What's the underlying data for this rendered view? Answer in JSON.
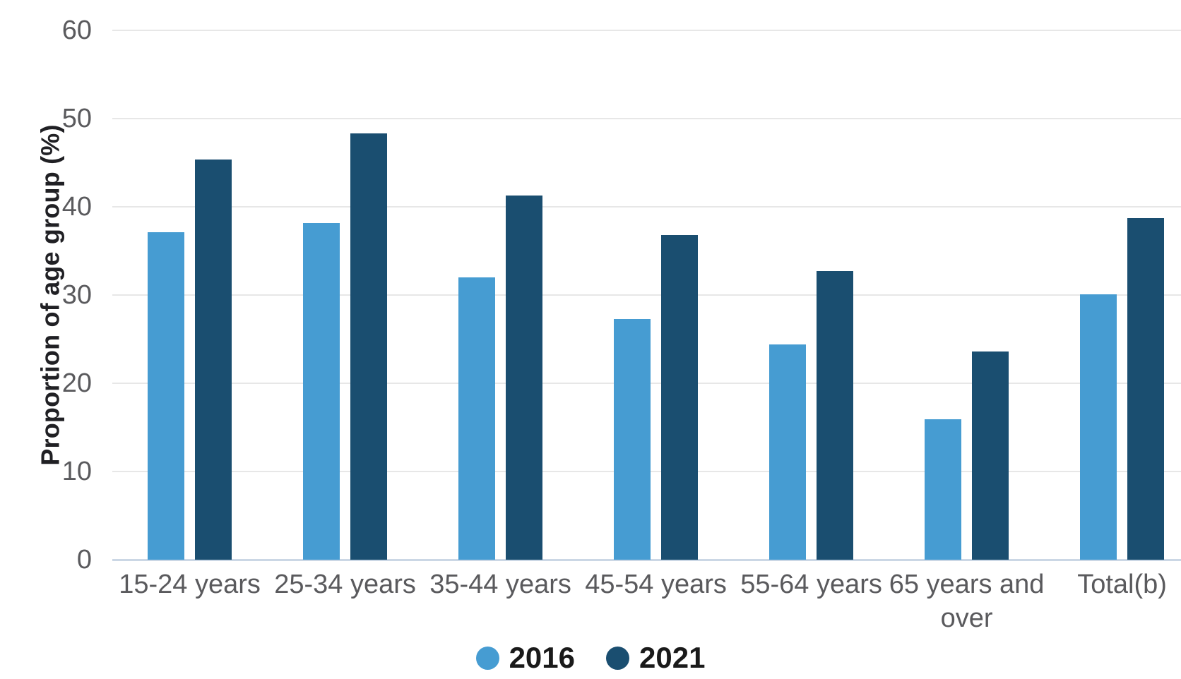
{
  "chart_data": {
    "type": "bar",
    "ylabel": "Proportion of age group (%)",
    "ylim": [
      0,
      60
    ],
    "yticks": [
      0,
      10,
      20,
      30,
      40,
      50,
      60
    ],
    "grid": true,
    "legend_position": "bottom",
    "categories": [
      "15-24 years",
      "25-34 years",
      "35-44 years",
      "45-54 years",
      "55-64 years",
      "65 years and over",
      "Total(b)"
    ],
    "series": [
      {
        "name": "2016",
        "color": "#469cd2",
        "values": [
          37.1,
          38.2,
          32.0,
          27.3,
          24.4,
          15.9,
          30.1
        ]
      },
      {
        "name": "2021",
        "color": "#1a4e70",
        "values": [
          45.4,
          48.3,
          41.3,
          36.8,
          32.7,
          23.6,
          38.7
        ]
      }
    ]
  },
  "colors": {
    "gridline": "#e7e7e7",
    "baseline": "#cbd7e5",
    "tick_text": "#5a5a5d",
    "axis_title_text": "#202024",
    "legend_text": "#1a1a1a",
    "background": "#ffffff"
  }
}
